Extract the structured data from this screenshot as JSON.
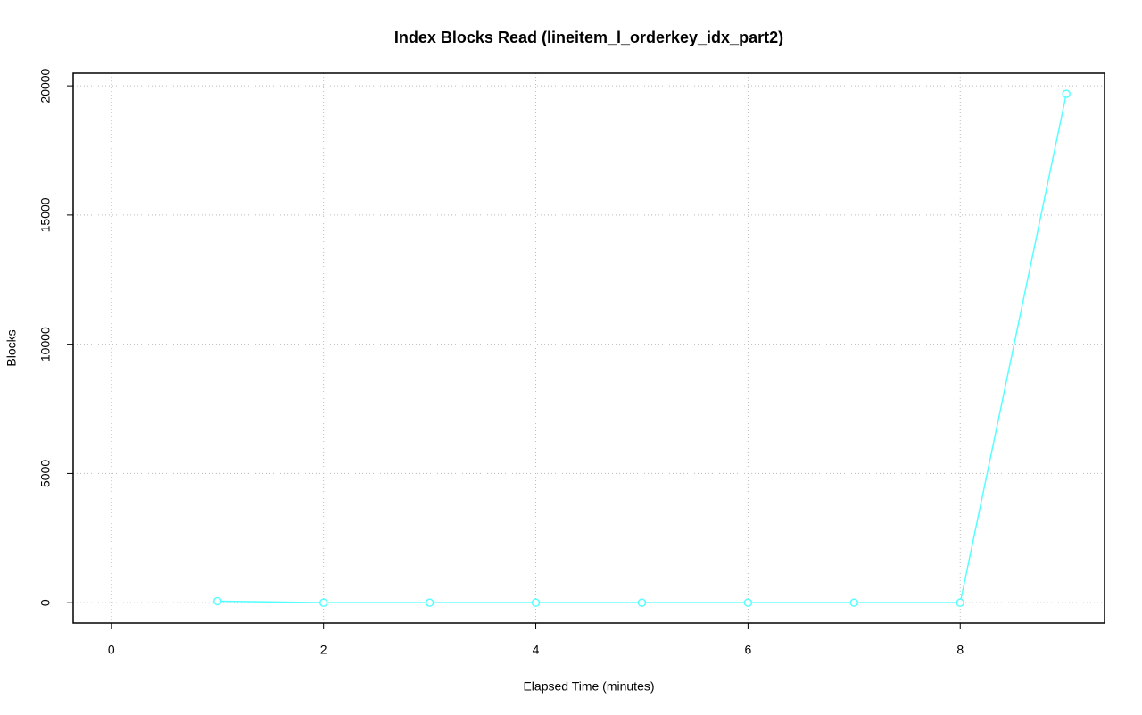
{
  "chart_data": {
    "type": "line",
    "title": "Index Blocks Read (lineitem_l_orderkey_idx_part2)",
    "x_label": "Elapsed Time (minutes)",
    "y_label": "Blocks",
    "x": [
      1,
      2,
      3,
      4,
      5,
      6,
      7,
      8,
      9
    ],
    "series": [
      {
        "name": "lineitem_l_orderkey_idx_part2",
        "color": "#55ffff",
        "values": [
          60,
          0,
          0,
          0,
          0,
          0,
          0,
          0,
          19690
        ]
      }
    ],
    "xlim": [
      -0.36,
      9.36
    ],
    "xticks": [
      0,
      2,
      4,
      6,
      8
    ],
    "ylim": [
      -788,
      20488
    ],
    "yticks": [
      0,
      5000,
      10000,
      15000,
      20000
    ],
    "grid": true
  }
}
